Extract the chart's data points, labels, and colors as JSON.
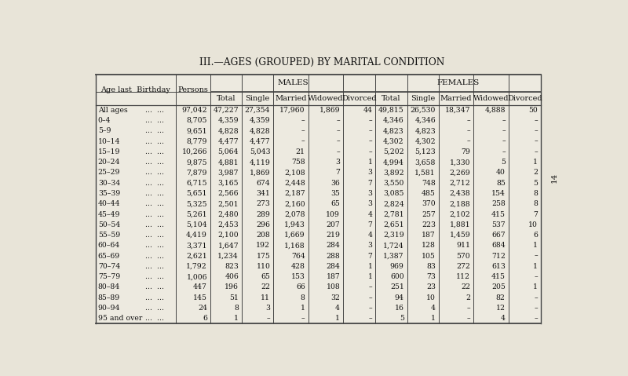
{
  "title": "III.—AGES (GROUPED) BY MARITAL CONDITION",
  "bg_color": "#e8e4d8",
  "table_bg": "#edeae0",
  "page_number": "14",
  "col_headers_l2": [
    "Total",
    "Single",
    "Married",
    "Widowed",
    "Divorced",
    "Total",
    "Single",
    "Married",
    "Widowed",
    "Divorced"
  ],
  "rows": [
    [
      "All ages",
      "97,042",
      "47,227",
      "27,354",
      "17,960",
      "1,869",
      "44",
      "49,815",
      "26,530",
      "18,347",
      "4,888",
      "50"
    ],
    [
      "0–4",
      "8,705",
      "4,359",
      "4,359",
      "–",
      "–",
      "–",
      "4,346",
      "4,346",
      "–",
      "–",
      "–"
    ],
    [
      "5–9",
      "9,651",
      "4,828",
      "4,828",
      "–",
      "–",
      "–",
      "4,823",
      "4,823",
      "–",
      "–",
      "–"
    ],
    [
      "10–14",
      "8,779",
      "4,477",
      "4,477",
      "–",
      "–",
      "–",
      "4,302",
      "4,302",
      "–",
      "–",
      "–"
    ],
    [
      "15–19",
      "10,266",
      "5,064",
      "5,043",
      "21",
      "–",
      "–",
      "5,202",
      "5,123",
      "79",
      "–",
      "–"
    ],
    [
      "20–24",
      "9,875",
      "4,881",
      "4,119",
      "758",
      "3",
      "1",
      "4,994",
      "3,658",
      "1,330",
      "5",
      "1"
    ],
    [
      "25–29",
      "7,879",
      "3,987",
      "1,869",
      "2,108",
      "7",
      "3",
      "3,892",
      "1,581",
      "2,269",
      "40",
      "2"
    ],
    [
      "30–34",
      "6,715",
      "3,165",
      "674",
      "2,448",
      "36",
      "7",
      "3,550",
      "748",
      "2,712",
      "85",
      "5"
    ],
    [
      "35–39",
      "5,651",
      "2,566",
      "341",
      "2,187",
      "35",
      "3",
      "3,085",
      "485",
      "2,438",
      "154",
      "8"
    ],
    [
      "40–44",
      "5,325",
      "2,501",
      "273",
      "2,160",
      "65",
      "3",
      "2,824",
      "370",
      "2,188",
      "258",
      "8"
    ],
    [
      "45–49",
      "5,261",
      "2,480",
      "289",
      "2,078",
      "109",
      "4",
      "2,781",
      "257",
      "2,102",
      "415",
      "7"
    ],
    [
      "50–54",
      "5,104",
      "2,453",
      "296",
      "1,943",
      "207",
      "7",
      "2,651",
      "223",
      "1,881",
      "537",
      "10"
    ],
    [
      "55–59",
      "4,419",
      "2,100",
      "208",
      "1,669",
      "219",
      "4",
      "2,319",
      "187",
      "1,459",
      "667",
      "6"
    ],
    [
      "60–64",
      "3,371",
      "1,647",
      "192",
      "1,168",
      "284",
      "3",
      "1,724",
      "128",
      "911",
      "684",
      "1"
    ],
    [
      "65–69",
      "2,621",
      "1,234",
      "175",
      "764",
      "288",
      "7",
      "1,387",
      "105",
      "570",
      "712",
      "–"
    ],
    [
      "70–74",
      "1,792",
      "823",
      "110",
      "428",
      "284",
      "1",
      "969",
      "83",
      "272",
      "613",
      "1"
    ],
    [
      "75–79",
      "1,006",
      "406",
      "65",
      "153",
      "187",
      "1",
      "600",
      "73",
      "112",
      "415",
      "–"
    ],
    [
      "80–84",
      "447",
      "196",
      "22",
      "66",
      "108",
      "–",
      "251",
      "23",
      "22",
      "205",
      "1"
    ],
    [
      "85–89",
      "145",
      "51",
      "11",
      "8",
      "32",
      "–",
      "94",
      "10",
      "2",
      "82",
      "–"
    ],
    [
      "90–94",
      "24",
      "8",
      "3",
      "1",
      "4",
      "–",
      "16",
      "4",
      "–",
      "12",
      "–"
    ],
    [
      "95 and over",
      "6",
      "1",
      "–",
      "–",
      "1",
      "–",
      "5",
      "1",
      "–",
      "4",
      "–"
    ]
  ]
}
